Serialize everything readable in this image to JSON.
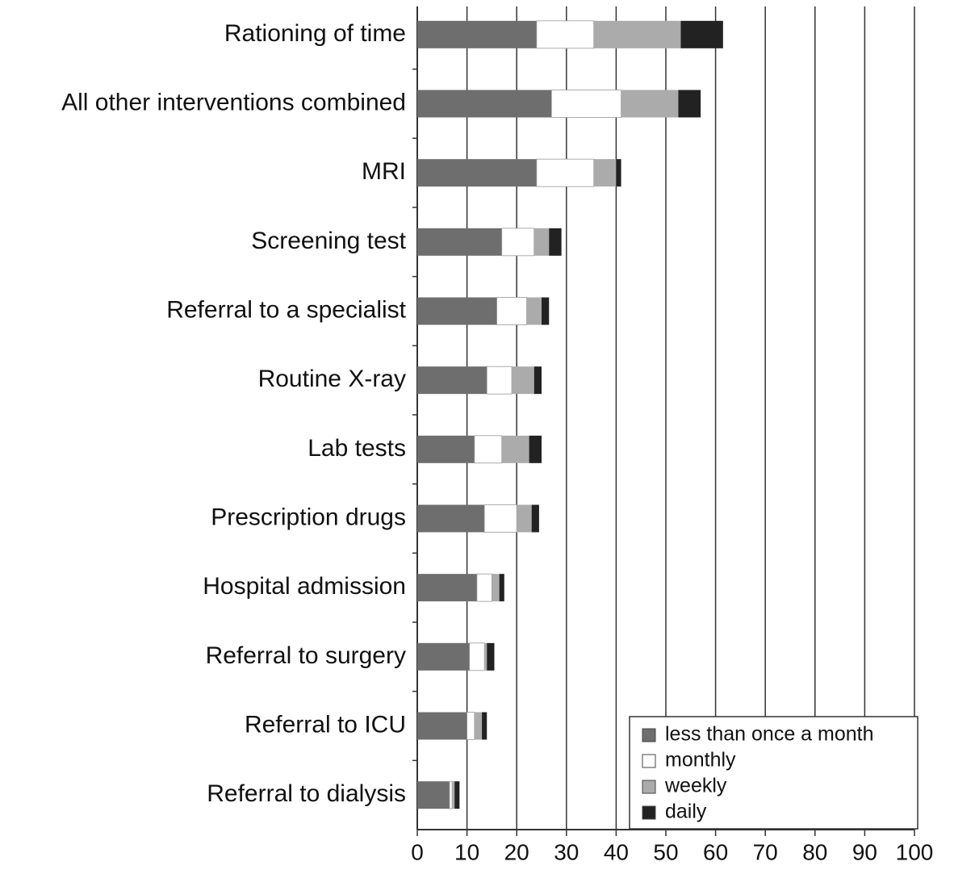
{
  "chart_data": {
    "type": "stacked_barh",
    "categories": [
      "Rationing of time",
      "All other interventions combined",
      "MRI",
      "Screening test",
      "Referral to a specialist",
      "Routine X-ray",
      "Lab tests",
      "Prescription drugs",
      "Hospital admission",
      "Referral to surgery",
      "Referral to ICU",
      "Referral to dialysis"
    ],
    "series": [
      {
        "name": "less than once a month",
        "color": "#6e6e6e",
        "values": [
          24,
          27,
          24,
          17,
          16,
          14,
          11.5,
          13.5,
          12,
          10.5,
          10,
          6.5
        ]
      },
      {
        "name": "monthly",
        "color": "#ffffff",
        "values": [
          11.5,
          14,
          11.5,
          6.5,
          6,
          5,
          5.5,
          6.5,
          3,
          3,
          1.5,
          0.5
        ]
      },
      {
        "name": "weekly",
        "color": "#ababab",
        "values": [
          17.5,
          11.5,
          4.5,
          3,
          3,
          4.5,
          5.5,
          3,
          1.5,
          0.5,
          1.5,
          0.5
        ]
      },
      {
        "name": "daily",
        "color": "#222222",
        "values": [
          8.5,
          4.5,
          1,
          2.5,
          1.5,
          1.5,
          2.5,
          1.5,
          1,
          1.5,
          1,
          1
        ]
      }
    ],
    "xlim": [
      0,
      100
    ],
    "xticks": [
      0,
      10,
      20,
      30,
      40,
      50,
      60,
      70,
      80,
      90,
      100
    ],
    "grid": true,
    "legend": "lower right"
  }
}
